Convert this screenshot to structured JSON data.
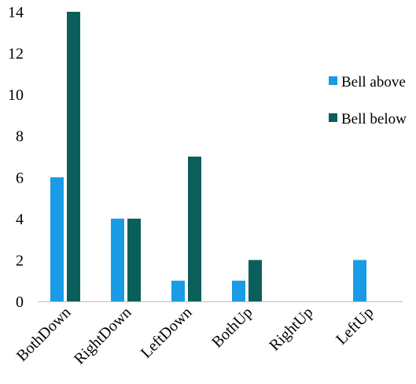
{
  "chart_data": {
    "type": "bar",
    "categories": [
      "BothDown",
      "RightDown",
      "LeftDown",
      "BothUp",
      "RightUp",
      "LeftUp"
    ],
    "series": [
      {
        "name": "Bell above",
        "color": "#1a9be6",
        "values": [
          6,
          4,
          1,
          1,
          0,
          2
        ]
      },
      {
        "name": "Bell below",
        "color": "#0b5f5b",
        "values": [
          14,
          4,
          7,
          2,
          0,
          0
        ]
      }
    ],
    "yticks": [
      0,
      2,
      4,
      6,
      8,
      10,
      12,
      14
    ],
    "ylim": [
      0,
      14
    ],
    "grid": false,
    "legend_position": "right"
  }
}
